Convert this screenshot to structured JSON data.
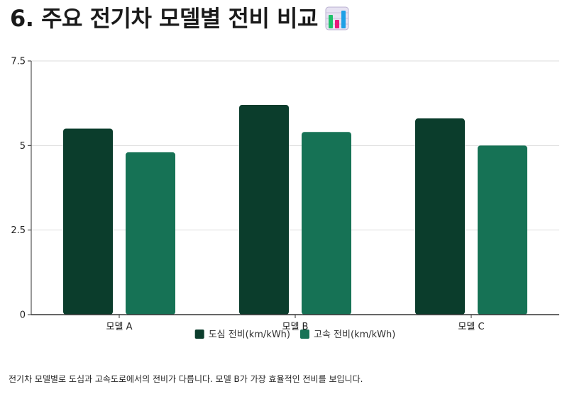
{
  "page": {
    "title": "6. 주요 전기차 모델별 전비 비교",
    "title_icon": "bar-chart-icon",
    "caption": "전기차 모델별로 도심과 고속도로에서의 전비가 다릅니다. 모델 B가 가장 효율적인 전비를 보입니다."
  },
  "chart_data": {
    "type": "bar",
    "title": "",
    "xlabel": "",
    "ylabel": "",
    "categories": [
      "모델 A",
      "모델 B",
      "모델 C"
    ],
    "series": [
      {
        "name": "도심 전비(km/kWh)",
        "values": [
          5.5,
          6.2,
          5.8
        ],
        "color": "#0b3d2c"
      },
      {
        "name": "고속 전비(km/kWh)",
        "values": [
          4.8,
          5.4,
          5.0
        ],
        "color": "#167255"
      }
    ],
    "ylim": [
      0,
      7.5
    ],
    "yticks": [
      0,
      2.5,
      5,
      7.5
    ],
    "ytick_labels": [
      "0",
      "2.5",
      "5",
      "7.5"
    ],
    "grid": true,
    "legend_position": "bottom-center"
  }
}
